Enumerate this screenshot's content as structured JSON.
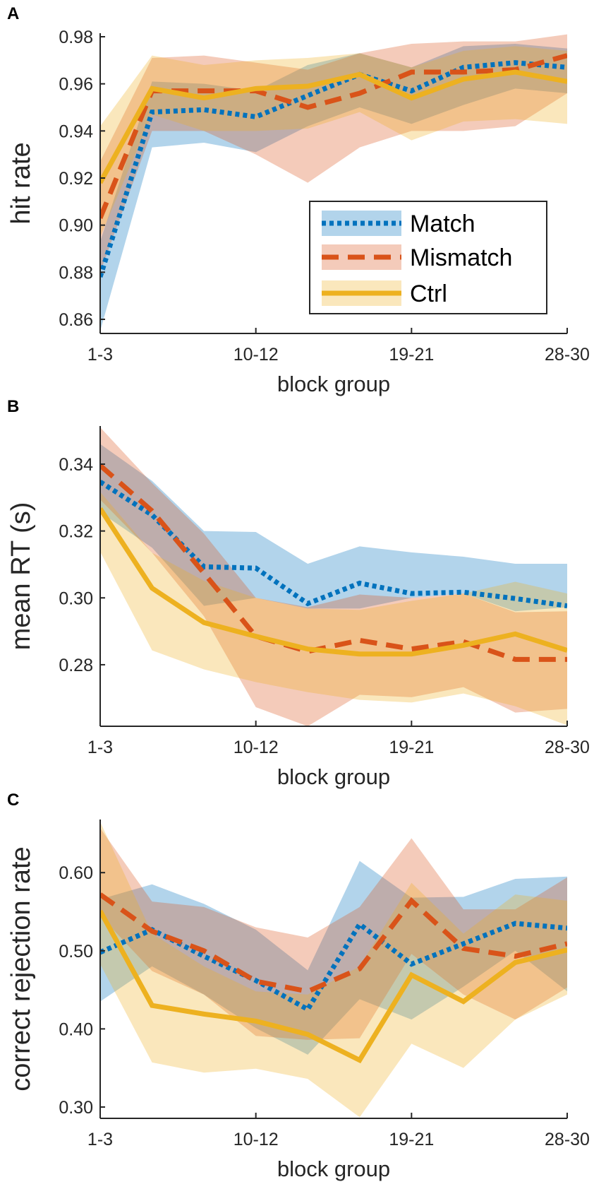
{
  "colors": {
    "Match": "#0072BD",
    "Mismatch": "#D95319",
    "Ctrl": "#EDB120",
    "axis": "#262626"
  },
  "legend": {
    "entries": [
      "Match",
      "Mismatch",
      "Ctrl"
    ]
  },
  "chart_data": [
    {
      "panel": "A",
      "type": "line",
      "title": "",
      "xlabel": "block group",
      "ylabel": "hit rate",
      "x": [
        1,
        2,
        3,
        4,
        5,
        6,
        7,
        8,
        9,
        10
      ],
      "x_ticks": [
        1,
        4,
        7,
        10
      ],
      "x_tick_labels": [
        "1-3",
        "10-12",
        "19-21",
        "28-30"
      ],
      "y_ticks": [
        0.86,
        0.88,
        0.9,
        0.92,
        0.94,
        0.96,
        0.98
      ],
      "y_tick_labels": [
        "0.86",
        "0.88",
        "0.90",
        "0.92",
        "0.94",
        "0.96",
        "0.98"
      ],
      "ylim": [
        0.854,
        0.9815
      ],
      "grid": false,
      "legend_position": "bottom-right",
      "series": [
        {
          "name": "Match",
          "style": "dotted",
          "values": [
            0.878,
            0.948,
            0.949,
            0.946,
            0.955,
            0.964,
            0.957,
            0.967,
            0.969,
            0.967
          ],
          "lower": [
            0.855,
            0.933,
            0.935,
            0.931,
            0.942,
            0.95,
            0.943,
            0.951,
            0.958,
            0.956
          ],
          "upper": [
            0.893,
            0.961,
            0.96,
            0.957,
            0.968,
            0.973,
            0.967,
            0.976,
            0.977,
            0.975
          ]
        },
        {
          "name": "Mismatch",
          "style": "dashed",
          "values": [
            0.903,
            0.957,
            0.957,
            0.957,
            0.95,
            0.956,
            0.965,
            0.965,
            0.966,
            0.972
          ],
          "lower": [
            0.88,
            0.94,
            0.94,
            0.93,
            0.918,
            0.933,
            0.94,
            0.94,
            0.942,
            0.956
          ],
          "upper": [
            0.927,
            0.971,
            0.972,
            0.969,
            0.966,
            0.973,
            0.977,
            0.978,
            0.978,
            0.981
          ]
        },
        {
          "name": "Ctrl",
          "style": "solid",
          "values": [
            0.918,
            0.958,
            0.954,
            0.958,
            0.959,
            0.964,
            0.954,
            0.962,
            0.965,
            0.961
          ],
          "lower": [
            0.895,
            0.947,
            0.94,
            0.94,
            0.941,
            0.948,
            0.936,
            0.944,
            0.945,
            0.943
          ],
          "upper": [
            0.942,
            0.972,
            0.968,
            0.97,
            0.971,
            0.973,
            0.967,
            0.974,
            0.976,
            0.974
          ]
        }
      ]
    },
    {
      "panel": "B",
      "type": "line",
      "title": "",
      "xlabel": "block group",
      "ylabel": "mean RT (s)",
      "x": [
        1,
        2,
        3,
        4,
        5,
        6,
        7,
        8,
        9,
        10
      ],
      "x_ticks": [
        1,
        4,
        7,
        10
      ],
      "x_tick_labels": [
        "1-3",
        "10-12",
        "19-21",
        "28-30"
      ],
      "y_ticks": [
        0.28,
        0.3,
        0.32,
        0.34
      ],
      "y_tick_labels": [
        "0.28",
        "0.30",
        "0.32",
        "0.34"
      ],
      "ylim": [
        0.2616,
        0.3514
      ],
      "grid": false,
      "series": [
        {
          "name": "Match",
          "style": "dotted",
          "values": [
            0.3347,
            0.3248,
            0.3093,
            0.3089,
            0.2983,
            0.3044,
            0.3013,
            0.3017,
            0.2998,
            0.2976
          ],
          "lower": [
            0.3256,
            0.315,
            0.2976,
            0.3,
            0.2968,
            0.2968,
            0.3,
            0.3013,
            0.296,
            0.2972
          ],
          "upper": [
            0.346,
            0.335,
            0.32,
            0.3197,
            0.3102,
            0.3154,
            0.3136,
            0.3123,
            0.3102,
            0.3102
          ]
        },
        {
          "name": "Mismatch",
          "style": "dashed",
          "values": [
            0.3396,
            0.326,
            0.3074,
            0.2885,
            0.284,
            0.2873,
            0.2847,
            0.2869,
            0.2816,
            0.2816
          ],
          "lower": [
            0.3294,
            0.3135,
            0.2945,
            0.2673,
            0.2616,
            0.271,
            0.2703,
            0.2733,
            0.2657,
            0.2668
          ],
          "upper": [
            0.351,
            0.3343,
            0.3192,
            0.3,
            0.2972,
            0.301,
            0.3,
            0.3013,
            0.2957,
            0.296
          ]
        },
        {
          "name": "Ctrl",
          "style": "solid",
          "values": [
            0.3267,
            0.3029,
            0.2926,
            0.2885,
            0.2847,
            0.2832,
            0.2832,
            0.2858,
            0.2892,
            0.2843
          ],
          "lower": [
            0.3138,
            0.2843,
            0.2786,
            0.2748,
            0.2718,
            0.2695,
            0.2687,
            0.2714,
            0.2676,
            0.2619
          ],
          "upper": [
            0.3317,
            0.3135,
            0.3051,
            0.3,
            0.2968,
            0.2964,
            0.2991,
            0.3013,
            0.3048,
            0.3013
          ]
        }
      ]
    },
    {
      "panel": "C",
      "type": "line",
      "title": "",
      "xlabel": "block group",
      "ylabel": "correct rejection rate",
      "x": [
        1,
        2,
        3,
        4,
        5,
        6,
        7,
        8,
        9,
        10
      ],
      "x_ticks": [
        1,
        4,
        7,
        10
      ],
      "x_tick_labels": [
        "1-3",
        "10-12",
        "19-21",
        "28-30"
      ],
      "y_ticks": [
        0.3,
        0.4,
        0.5,
        0.6
      ],
      "y_tick_labels": [
        "0.30",
        "0.40",
        "0.50",
        "0.60"
      ],
      "ylim": [
        0.2855,
        0.668
      ],
      "grid": false,
      "series": [
        {
          "name": "Match",
          "style": "dotted",
          "values": [
            0.498,
            0.527,
            0.493,
            0.462,
            0.425,
            0.534,
            0.483,
            0.509,
            0.535,
            0.529
          ],
          "lower": [
            0.435,
            0.48,
            0.444,
            0.401,
            0.367,
            0.438,
            0.412,
            0.454,
            0.5,
            0.448
          ],
          "upper": [
            0.566,
            0.585,
            0.56,
            0.527,
            0.475,
            0.615,
            0.568,
            0.569,
            0.592,
            0.595
          ]
        },
        {
          "name": "Mismatch",
          "style": "dashed",
          "values": [
            0.572,
            0.525,
            0.5,
            0.461,
            0.448,
            0.477,
            0.564,
            0.503,
            0.493,
            0.509
          ],
          "lower": [
            0.545,
            0.474,
            0.444,
            0.391,
            0.386,
            0.388,
            0.496,
            0.444,
            0.412,
            0.453
          ],
          "upper": [
            0.657,
            0.563,
            0.556,
            0.53,
            0.517,
            0.556,
            0.644,
            0.553,
            0.553,
            0.594
          ]
        },
        {
          "name": "Ctrl",
          "style": "solid",
          "values": [
            0.551,
            0.43,
            0.419,
            0.41,
            0.393,
            0.36,
            0.469,
            0.435,
            0.485,
            0.501
          ],
          "lower": [
            0.483,
            0.357,
            0.344,
            0.349,
            0.336,
            0.287,
            0.381,
            0.35,
            0.412,
            0.444
          ],
          "upper": [
            0.665,
            0.522,
            0.48,
            0.448,
            0.444,
            0.48,
            0.587,
            0.522,
            0.572,
            0.564
          ]
        }
      ]
    }
  ]
}
